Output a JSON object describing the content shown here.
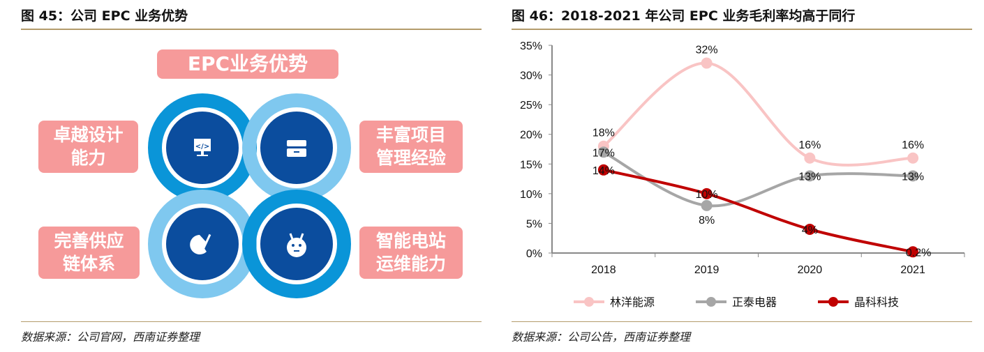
{
  "left": {
    "title": "图 45：公司 EPC 业务优势",
    "source": "数据来源：公司官网，西南证券整理",
    "diagram": {
      "header": "EPC业务优势",
      "items": [
        {
          "line1": "卓越设计",
          "line2": "能力",
          "icon": "code-monitor-icon"
        },
        {
          "line1": "丰富项目",
          "line2": "管理经验",
          "icon": "drawer-cabinet-icon"
        },
        {
          "line1": "完善供应",
          "line2": "链体系",
          "icon": "palette-icon"
        },
        {
          "line1": "智能电站",
          "line2": "运维能力",
          "icon": "robot-icon"
        }
      ]
    }
  },
  "right": {
    "title": "图 46：2018-2021 年公司 EPC 业务毛利率均高于同行",
    "source": "数据来源：公司公告，西南证券整理"
  },
  "chart_data": {
    "type": "line",
    "title": "",
    "categories": [
      "2018",
      "2019",
      "2020",
      "2021"
    ],
    "ylim": [
      0,
      35
    ],
    "yticks": [
      "0%",
      "5%",
      "10%",
      "15%",
      "20%",
      "25%",
      "30%",
      "35%"
    ],
    "legend": "bottom",
    "grid": false,
    "series": [
      {
        "name": "林洋能源",
        "values": [
          18,
          32,
          16,
          16
        ],
        "labels": [
          "18%",
          "32%",
          "16%",
          "16%"
        ],
        "color": "#f9c4c4"
      },
      {
        "name": "正泰电器",
        "values": [
          17,
          8,
          13,
          13
        ],
        "labels": [
          "17%",
          "8%",
          "13%",
          "13%"
        ],
        "color": "#a6a6a6"
      },
      {
        "name": "晶科科技",
        "values": [
          14,
          10,
          4,
          0.2
        ],
        "labels": [
          "14%",
          "10%",
          "4%",
          "0.2%"
        ],
        "color": "#c00000"
      }
    ]
  }
}
